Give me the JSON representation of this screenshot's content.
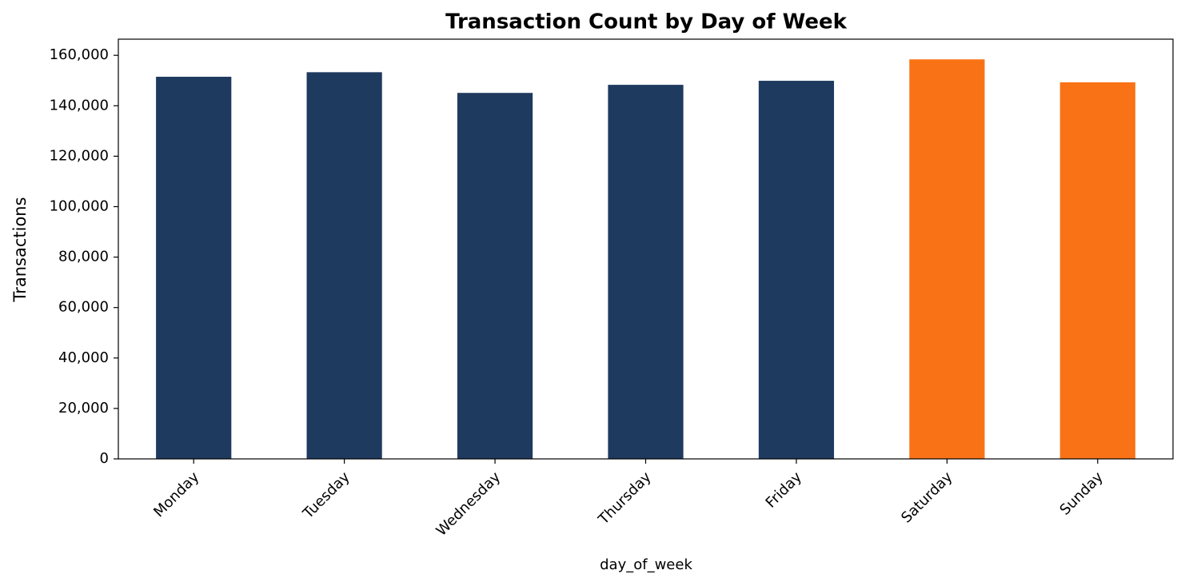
{
  "chart_data": {
    "type": "bar",
    "title": "Transaction Count by Day of Week",
    "x_label": "day_of_week",
    "y_label": "Transactions",
    "categories": [
      "Monday",
      "Tuesday",
      "Wednesday",
      "Thursday",
      "Friday",
      "Saturday",
      "Sunday"
    ],
    "values": [
      151500,
      153300,
      145100,
      148300,
      149900,
      158400,
      149300
    ],
    "colors": [
      "#1f3a5f",
      "#1f3a5f",
      "#1f3a5f",
      "#1f3a5f",
      "#1f3a5f",
      "#f97316",
      "#f97316"
    ],
    "ylim": [
      0,
      166400
    ],
    "yticks": [
      0,
      {
        "value": 20000,
        "label": "20,000"
      },
      {
        "value": 40000,
        "label": "40,000"
      },
      {
        "value": 60000,
        "label": "60,000"
      },
      {
        "value": 80000,
        "label": "80,000"
      },
      {
        "value": 100000,
        "label": "100,000"
      },
      {
        "value": 120000,
        "label": "120,000"
      },
      {
        "value": 140000,
        "label": "140,000"
      },
      {
        "value": 160000,
        "label": "160,000"
      }
    ],
    "grid": false
  }
}
